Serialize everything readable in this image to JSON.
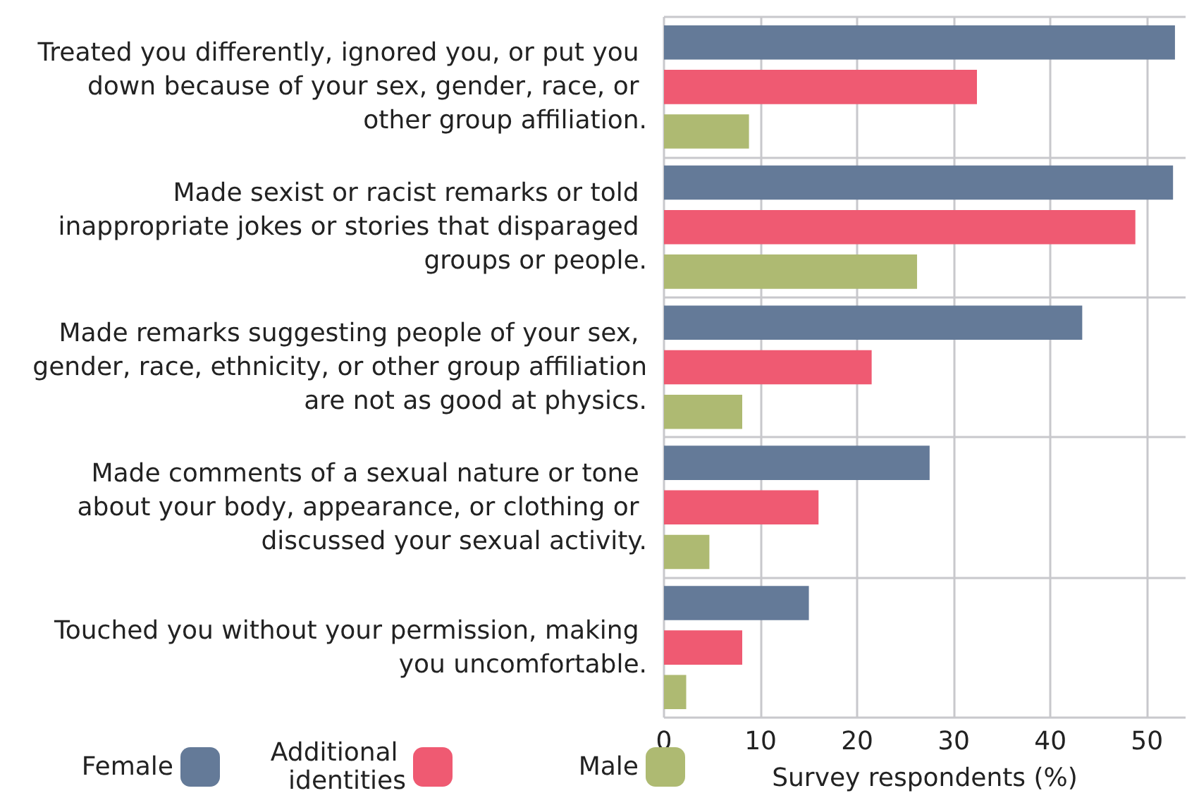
{
  "chart_data": {
    "type": "bar",
    "orientation": "horizontal",
    "categories": [
      "Treated you differently, ignored you, or put you down because of your sex, gender, race, or other group affiliation.",
      "Made sexist or racist remarks or told inappropriate jokes or stories that disparaged groups or people.",
      "Made remarks suggesting people of your sex, gender, race, ethnicity, or other group affiliation are not as good at physics.",
      "Made comments of a sexual nature or tone about your body, appearance, or clothing or discussed your sexual activity.",
      "Touched you without your permission, making you uncomfortable."
    ],
    "series": [
      {
        "name": "Female",
        "color": "#647a98",
        "values": [
          52.9,
          52.7,
          43.3,
          27.5,
          15.0
        ]
      },
      {
        "name": "Additional identities",
        "color": "#ef5a72",
        "values": [
          32.4,
          48.8,
          21.5,
          16.0,
          8.1
        ]
      },
      {
        "name": "Male",
        "color": "#aeba72",
        "values": [
          8.8,
          26.2,
          8.1,
          4.7,
          2.3
        ]
      }
    ],
    "xlabel": "Survey respondents (%)",
    "xlim": [
      0,
      54
    ],
    "xticks": [
      0,
      10,
      20,
      30,
      40,
      50
    ],
    "grid": true,
    "legend": "bottom left"
  }
}
